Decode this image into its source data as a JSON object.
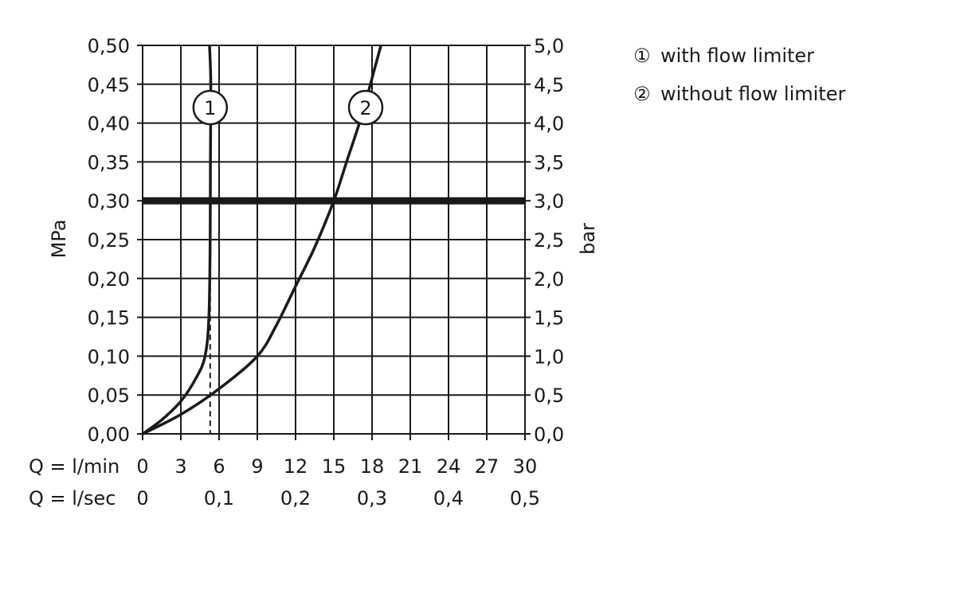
{
  "chart_data": {
    "type": "line",
    "y_left": {
      "label": "MPa",
      "ticks": [
        "0,00",
        "0,05",
        "0,10",
        "0,15",
        "0,20",
        "0,25",
        "0,30",
        "0,35",
        "0,40",
        "0,45",
        "0,50"
      ],
      "ylim": [
        0,
        0.5
      ]
    },
    "y_right": {
      "label": "bar",
      "ticks": [
        "0,0",
        "0,5",
        "1,0",
        "1,5",
        "2,0",
        "2,5",
        "3,0",
        "3,5",
        "4,0",
        "4,5",
        "5,0"
      ],
      "ylim": [
        0,
        5
      ]
    },
    "x_primary": {
      "label": "Q = l/min",
      "ticks": [
        "0",
        "3",
        "6",
        "9",
        "12",
        "15",
        "18",
        "21",
        "24",
        "27",
        "30"
      ],
      "xlim": [
        0,
        30
      ]
    },
    "x_secondary": {
      "label": "Q = l/sec",
      "ticks": [
        {
          "text": "0",
          "lpm": 0
        },
        {
          "text": "0,1",
          "lpm": 6
        },
        {
          "text": "0,2",
          "lpm": 12
        },
        {
          "text": "0,3",
          "lpm": 18
        },
        {
          "text": "0,4",
          "lpm": 24
        },
        {
          "text": "0,5",
          "lpm": 30
        }
      ]
    },
    "grid": true,
    "reference_line": {
      "y": 0.3
    },
    "series": [
      {
        "name": "with flow limiter",
        "marker": "1",
        "x": [
          0,
          1.5,
          3,
          4.2,
          4.9,
          5.2,
          5.3,
          5.32,
          5.35,
          5.25
        ],
        "y": [
          0,
          0.018,
          0.042,
          0.072,
          0.1,
          0.15,
          0.25,
          0.35,
          0.45,
          0.5
        ],
        "marker_pos": [
          5.3,
          0.42
        ],
        "drop_line_x": 5.3
      },
      {
        "name": "without flow limiter",
        "marker": "2",
        "x": [
          0,
          3,
          6,
          9,
          10.5,
          12,
          13.5,
          15,
          16,
          17.2,
          18.2,
          18.7
        ],
        "y": [
          0,
          0.025,
          0.058,
          0.1,
          0.14,
          0.19,
          0.24,
          0.3,
          0.35,
          0.41,
          0.47,
          0.5
        ],
        "marker_pos": [
          17.5,
          0.42
        ],
        "drop_line_x": 15
      }
    ],
    "legend": [
      {
        "marker": "①",
        "text": "with flow limiter"
      },
      {
        "marker": "②",
        "text": "without flow limiter"
      }
    ]
  }
}
